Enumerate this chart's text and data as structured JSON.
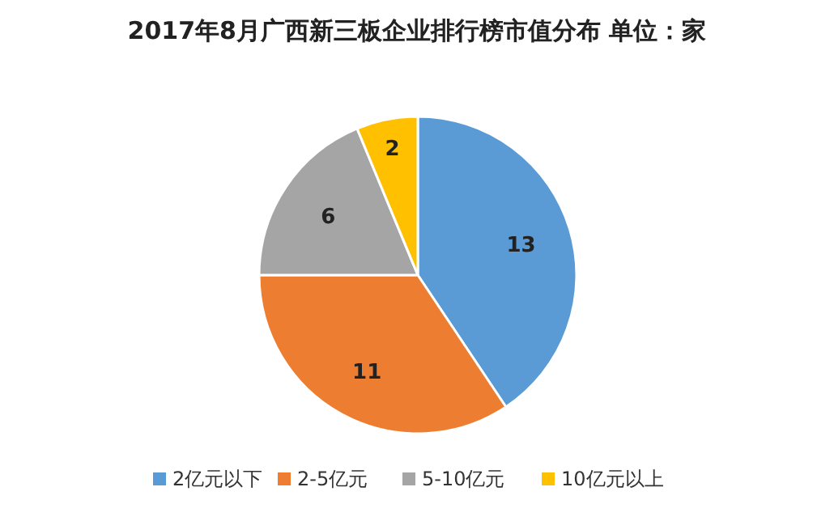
{
  "chart_data": {
    "type": "pie",
    "title": "2017年8月广西新三板企业排行榜市值分布 单位：家",
    "categories": [
      "2亿元以下",
      "2-5亿元",
      "5-10亿元",
      "10亿元以上"
    ],
    "values": [
      13,
      11,
      6,
      2
    ],
    "colors": [
      "#5b9bd5",
      "#ed7d31",
      "#a5a5a5",
      "#ffc000"
    ],
    "data_labels": true,
    "legend": "bottom"
  }
}
